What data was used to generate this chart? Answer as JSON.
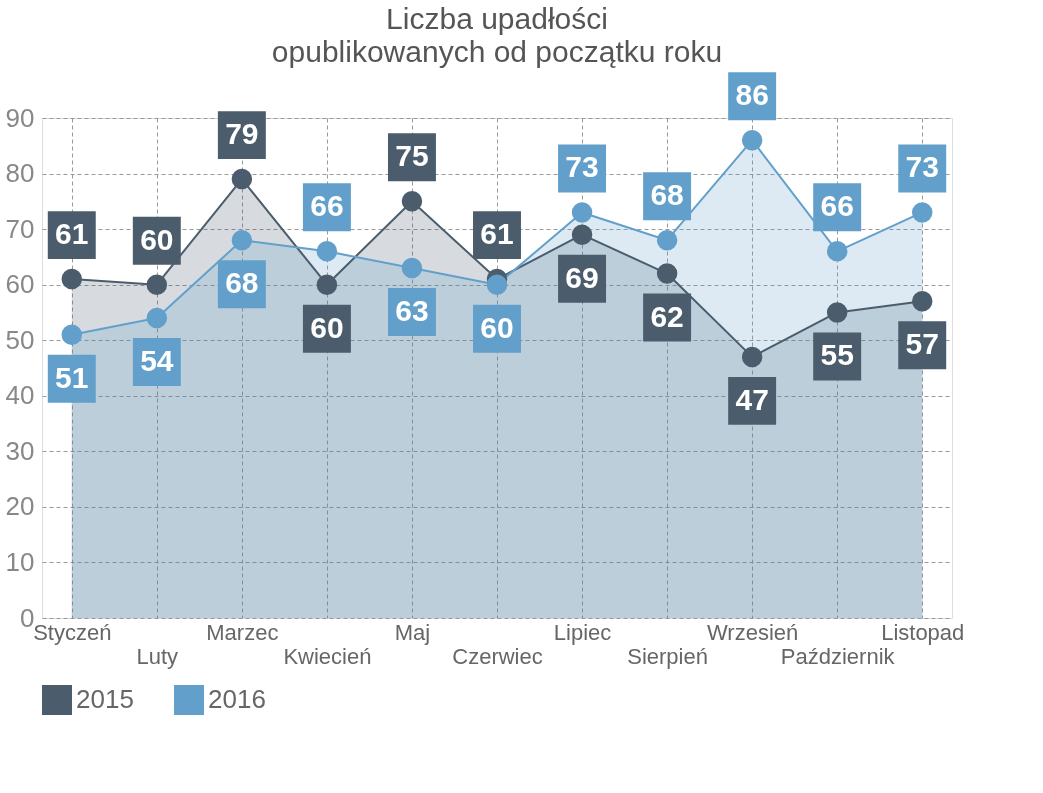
{
  "chart_data": {
    "type": "area",
    "title": "Liczba upadłości",
    "subtitle": "opublikowanych od początku roku",
    "categories": [
      "Styczeń",
      "Luty",
      "Marzec",
      "Kwiecień",
      "Maj",
      "Czerwiec",
      "Lipiec",
      "Sierpień",
      "Wrzesień",
      "Październik",
      "Listopad"
    ],
    "series": [
      {
        "name": "2015",
        "color": "#4b5d6c",
        "values": [
          61,
          60,
          79,
          60,
          75,
          61,
          69,
          62,
          47,
          55,
          57
        ]
      },
      {
        "name": "2016",
        "color": "#62a0cb",
        "values": [
          51,
          54,
          68,
          66,
          63,
          60,
          73,
          68,
          86,
          66,
          73
        ]
      }
    ],
    "ylim": [
      0,
      90
    ],
    "yticks": [
      0,
      10,
      20,
      30,
      40,
      50,
      60,
      70,
      80,
      90
    ],
    "grid": true,
    "legend": "bottom",
    "marker": "circle",
    "data_labels": true
  }
}
